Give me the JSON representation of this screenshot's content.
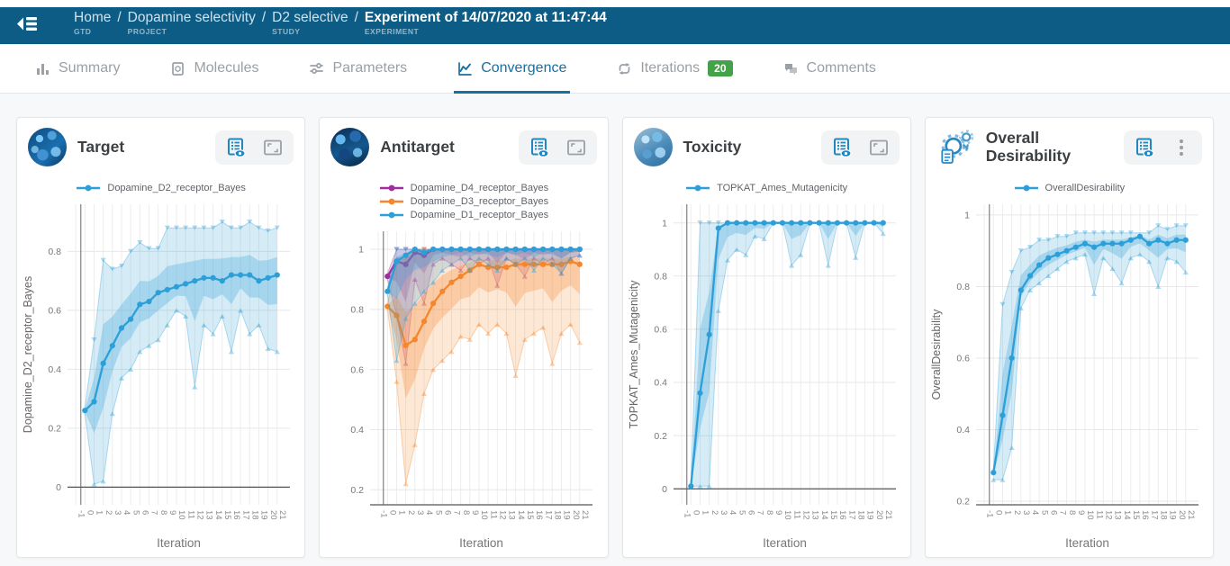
{
  "header": {
    "menu_icon": "collapse-menu-icon",
    "breadcrumb": [
      {
        "label": "Home",
        "sublabel": "GTD",
        "current": false
      },
      {
        "label": "Dopamine selectivity",
        "sublabel": "PROJECT",
        "current": false
      },
      {
        "label": "D2 selective",
        "sublabel": "STUDY",
        "current": false
      },
      {
        "label": "Experiment of 14/07/2020 at 11:47:44",
        "sublabel": "EXPERIMENT",
        "current": true
      }
    ],
    "separator": "/"
  },
  "tabs": [
    {
      "label": "Summary",
      "icon": "bar-chart-icon",
      "active": false
    },
    {
      "label": "Molecules",
      "icon": "molecules-icon",
      "active": false
    },
    {
      "label": "Parameters",
      "icon": "sliders-icon",
      "active": false
    },
    {
      "label": "Convergence",
      "icon": "line-chart-icon",
      "active": true
    },
    {
      "label": "Iterations",
      "icon": "loop-icon",
      "active": false,
      "badge": "20"
    },
    {
      "label": "Comments",
      "icon": "comments-icon",
      "active": false
    }
  ],
  "cards": [
    {
      "title": "Target",
      "icon": "molecule-avatar",
      "avatar_class": "molecule-1",
      "actions": [
        {
          "name": "data-table-button",
          "icon": "table-eye-icon"
        },
        {
          "name": "fullscreen-button",
          "icon": "fullscreen-icon"
        }
      ]
    },
    {
      "title": "Antitarget",
      "icon": "molecule-avatar",
      "avatar_class": "molecule-2",
      "actions": [
        {
          "name": "data-table-button",
          "icon": "table-eye-icon"
        },
        {
          "name": "fullscreen-button",
          "icon": "fullscreen-icon"
        }
      ]
    },
    {
      "title": "Toxicity",
      "icon": "molecule-avatar",
      "avatar_class": "molecule-3",
      "actions": [
        {
          "name": "data-table-button",
          "icon": "table-eye-icon"
        },
        {
          "name": "fullscreen-button",
          "icon": "fullscreen-icon"
        }
      ]
    },
    {
      "title": "Overall Desirability",
      "icon": "gears-illustration",
      "avatar_class": "gears",
      "actions": [
        {
          "name": "data-table-button",
          "icon": "table-eye-icon"
        },
        {
          "name": "menu-button",
          "icon": "kebab-icon"
        }
      ]
    }
  ],
  "colors": {
    "header_bg": "#0c5c85",
    "tab_active": "#1b6f9e",
    "tab_inactive": "#9aa0a6",
    "badge_green": "#43a24a",
    "series_blue": "#2d9fd8",
    "series_orange": "#f5862b",
    "series_purple": "#a12c9e"
  },
  "chart_data": [
    {
      "type": "line",
      "title": "Target",
      "xlabel": "Iteration",
      "ylabel": "Dopamine_D2_receptor_Bayes",
      "x": [
        0,
        1,
        2,
        3,
        4,
        5,
        6,
        7,
        8,
        9,
        10,
        11,
        12,
        13,
        14,
        15,
        16,
        17,
        18,
        19,
        20,
        21
      ],
      "x_ticks": [
        -1,
        0,
        1,
        2,
        3,
        4,
        5,
        6,
        7,
        8,
        9,
        10,
        11,
        12,
        13,
        14,
        15,
        16,
        17,
        18,
        19,
        20,
        21
      ],
      "ylim": [
        -0.06,
        0.96
      ],
      "y_ticks": [
        0,
        0.2,
        0.4,
        0.6,
        0.8
      ],
      "zero_line": 0,
      "grid": true,
      "legend_position": "top",
      "series": [
        {
          "name": "Dopamine_D2_receptor_Bayes",
          "color": "#2d9fd8",
          "mean": [
            0.26,
            0.29,
            0.42,
            0.48,
            0.54,
            0.57,
            0.62,
            0.63,
            0.66,
            0.67,
            0.68,
            0.69,
            0.7,
            0.71,
            0.71,
            0.7,
            0.72,
            0.72,
            0.72,
            0.7,
            0.71,
            0.72
          ],
          "upper": [
            0.27,
            0.5,
            0.77,
            0.74,
            0.75,
            0.8,
            0.83,
            0.81,
            0.81,
            0.88,
            0.88,
            0.88,
            0.88,
            0.88,
            0.88,
            0.9,
            0.88,
            0.88,
            0.9,
            0.88,
            0.87,
            0.88
          ],
          "lower": [
            0.25,
            0.01,
            0.02,
            0.25,
            0.37,
            0.4,
            0.46,
            0.48,
            0.5,
            0.55,
            0.6,
            0.58,
            0.34,
            0.55,
            0.52,
            0.58,
            0.46,
            0.6,
            0.52,
            0.55,
            0.47,
            0.46
          ]
        }
      ]
    },
    {
      "type": "line",
      "title": "Antitarget",
      "xlabel": "Iteration",
      "ylabel": "",
      "x": [
        0,
        1,
        2,
        3,
        4,
        5,
        6,
        7,
        8,
        9,
        10,
        11,
        12,
        13,
        14,
        15,
        16,
        17,
        18,
        19,
        20,
        21
      ],
      "x_ticks": [
        -1,
        0,
        1,
        2,
        3,
        4,
        5,
        6,
        7,
        8,
        9,
        10,
        11,
        12,
        13,
        14,
        15,
        16,
        17,
        18,
        19,
        20,
        21
      ],
      "ylim": [
        0.15,
        1.06
      ],
      "y_ticks": [
        0.2,
        0.4,
        0.6,
        0.8,
        1
      ],
      "zero_line": null,
      "grid": true,
      "legend_position": "top",
      "series": [
        {
          "name": "Dopamine_D4_receptor_Bayes",
          "color": "#a12c9e",
          "mean": [
            0.91,
            0.96,
            0.95,
            0.99,
            0.98,
            1,
            1,
            1,
            1,
            1,
            1,
            1,
            1,
            1,
            1,
            1,
            1,
            1,
            1,
            1,
            1,
            1
          ],
          "upper": [
            0.92,
            1,
            1,
            1,
            1,
            1,
            1,
            1,
            1,
            1,
            1,
            1,
            1,
            1,
            1,
            1,
            1,
            1,
            1,
            1,
            1,
            1
          ],
          "lower": [
            0.9,
            0.78,
            0.62,
            0.9,
            0.82,
            0.95,
            0.97,
            0.95,
            0.93,
            0.97,
            0.95,
            0.97,
            0.88,
            0.97,
            0.95,
            0.91,
            0.97,
            0.95,
            0.97,
            0.92,
            0.97,
            0.98
          ]
        },
        {
          "name": "Dopamine_D3_receptor_Bayes",
          "color": "#f5862b",
          "mean": [
            0.81,
            0.78,
            0.68,
            0.7,
            0.76,
            0.82,
            0.86,
            0.89,
            0.91,
            0.93,
            0.95,
            0.94,
            0.94,
            0.94,
            0.95,
            0.95,
            0.95,
            0.95,
            0.95,
            0.95,
            0.96,
            0.95
          ],
          "upper": [
            0.82,
            0.95,
            0.97,
            1,
            1,
            1,
            1,
            1,
            1,
            1,
            1,
            1,
            1,
            1,
            1,
            1,
            1,
            1,
            1,
            1,
            1,
            1
          ],
          "lower": [
            0.8,
            0.56,
            0.22,
            0.35,
            0.52,
            0.6,
            0.63,
            0.66,
            0.71,
            0.7,
            0.75,
            0.72,
            0.75,
            0.72,
            0.58,
            0.7,
            0.72,
            0.74,
            0.62,
            0.72,
            0.75,
            0.69
          ]
        },
        {
          "name": "Dopamine_D1_receptor_Bayes",
          "color": "#2d9fd8",
          "mean": [
            0.86,
            0.96,
            0.98,
            1,
            0.99,
            1,
            1,
            1,
            1,
            1,
            1,
            1,
            1,
            1,
            1,
            1,
            1,
            1,
            1,
            1,
            1,
            1
          ],
          "upper": [
            0.87,
            1,
            1,
            1,
            1,
            1,
            1,
            1,
            1,
            1,
            1,
            1,
            1,
            1,
            1,
            1,
            1,
            1,
            1,
            1,
            1,
            1
          ],
          "lower": [
            0.85,
            0.63,
            0.77,
            0.82,
            0.86,
            0.89,
            0.93,
            0.95,
            0.97,
            0.93,
            0.97,
            0.95,
            0.93,
            0.97,
            0.95,
            0.97,
            0.93,
            0.97,
            0.95,
            0.92,
            0.97,
            0.98
          ]
        }
      ]
    },
    {
      "type": "line",
      "title": "Toxicity",
      "xlabel": "Iteration",
      "ylabel": "TOPKAT_Ames_Mutagenicity",
      "x": [
        0,
        1,
        2,
        3,
        4,
        5,
        6,
        7,
        8,
        9,
        10,
        11,
        12,
        13,
        14,
        15,
        16,
        17,
        18,
        19,
        20,
        21
      ],
      "x_ticks": [
        -1,
        0,
        1,
        2,
        3,
        4,
        5,
        6,
        7,
        8,
        9,
        10,
        11,
        12,
        13,
        14,
        15,
        16,
        17,
        18,
        19,
        20,
        21
      ],
      "ylim": [
        -0.06,
        1.07
      ],
      "y_ticks": [
        0,
        0.2,
        0.4,
        0.6,
        0.8,
        1
      ],
      "zero_line": 0,
      "grid": true,
      "legend_position": "top",
      "series": [
        {
          "name": "TOPKAT_Ames_Mutagenicity",
          "color": "#2d9fd8",
          "mean": [
            0.01,
            0.36,
            0.58,
            0.98,
            1,
            1,
            1,
            1,
            1,
            1,
            1,
            1,
            1,
            1,
            1,
            1,
            1,
            1,
            1,
            1,
            1,
            1
          ],
          "upper": [
            0.02,
            1,
            1,
            1,
            1,
            1,
            1,
            1,
            1,
            1,
            1,
            1,
            1,
            1,
            1,
            1,
            1,
            1,
            1,
            1,
            1,
            1
          ],
          "lower": [
            0.01,
            0.01,
            0.01,
            0.67,
            0.86,
            0.9,
            0.88,
            0.95,
            0.94,
            1,
            1,
            0.84,
            0.88,
            1,
            1,
            0.84,
            1,
            1,
            0.87,
            1,
            1,
            0.96
          ]
        }
      ]
    },
    {
      "type": "line",
      "title": "Overall Desirability",
      "xlabel": "Iteration",
      "ylabel": "OverallDesirability",
      "x": [
        0,
        1,
        2,
        3,
        4,
        5,
        6,
        7,
        8,
        9,
        10,
        11,
        12,
        13,
        14,
        15,
        16,
        17,
        18,
        19,
        20,
        21
      ],
      "x_ticks": [
        -1,
        0,
        1,
        2,
        3,
        4,
        5,
        6,
        7,
        8,
        9,
        10,
        11,
        12,
        13,
        14,
        15,
        16,
        17,
        18,
        19,
        20,
        21
      ],
      "ylim": [
        0.19,
        1.03
      ],
      "y_ticks": [
        0.2,
        0.4,
        0.6,
        0.8,
        1
      ],
      "zero_line": null,
      "grid": true,
      "legend_position": "top",
      "series": [
        {
          "name": "OverallDesirability",
          "color": "#2d9fd8",
          "mean": [
            0.28,
            0.44,
            0.6,
            0.79,
            0.83,
            0.86,
            0.88,
            0.89,
            0.9,
            0.91,
            0.92,
            0.91,
            0.92,
            0.92,
            0.92,
            0.93,
            0.94,
            0.92,
            0.93,
            0.92,
            0.93,
            0.93
          ],
          "upper": [
            0.29,
            0.75,
            0.84,
            0.9,
            0.91,
            0.93,
            0.93,
            0.94,
            0.94,
            0.95,
            0.95,
            0.95,
            0.95,
            0.95,
            0.95,
            0.95,
            0.95,
            0.95,
            0.97,
            0.96,
            0.97,
            0.97
          ],
          "lower": [
            0.26,
            0.26,
            0.35,
            0.74,
            0.79,
            0.81,
            0.83,
            0.85,
            0.87,
            0.88,
            0.89,
            0.78,
            0.88,
            0.85,
            0.81,
            0.88,
            0.89,
            0.87,
            0.8,
            0.88,
            0.87,
            0.84
          ]
        }
      ]
    }
  ]
}
